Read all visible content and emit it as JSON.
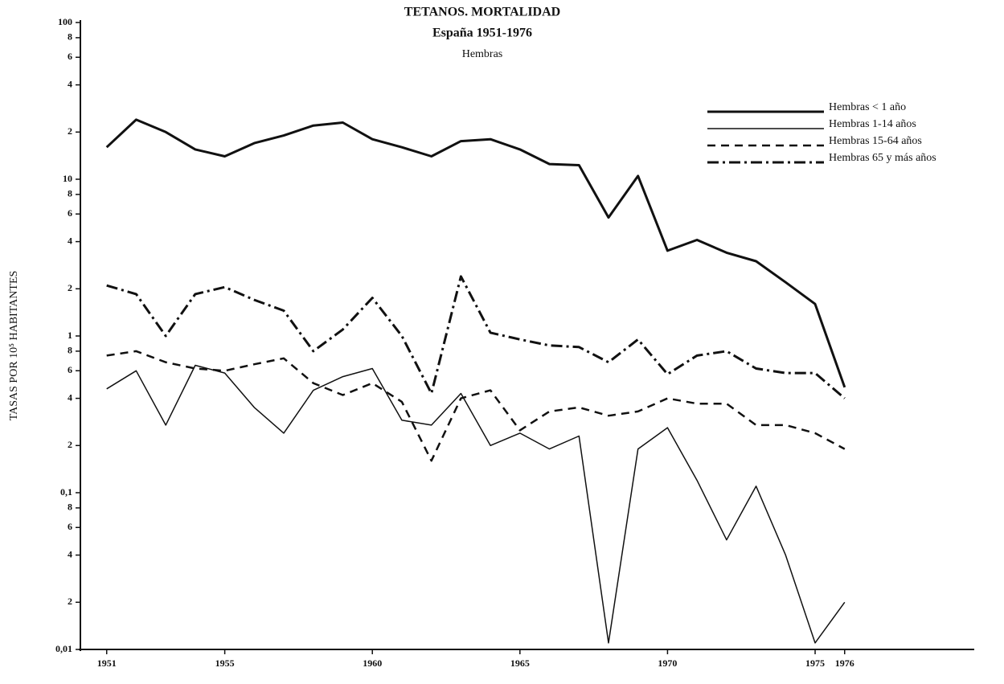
{
  "chart_data": {
    "type": "line",
    "title": "TETANOS. MORTALIDAD",
    "subtitle": "España 1951-1976",
    "subtitle2": "Hembras",
    "ylabel": "TASAS POR 10⁵ HABITANTES",
    "log_y": true,
    "grid": false,
    "legend": "upper right",
    "x": [
      1951,
      1952,
      1953,
      1954,
      1955,
      1956,
      1957,
      1958,
      1959,
      1960,
      1961,
      1962,
      1963,
      1964,
      1965,
      1966,
      1967,
      1968,
      1969,
      1970,
      1971,
      1972,
      1973,
      1974,
      1975,
      1976
    ],
    "series": [
      {
        "name": "Hembras < 1 año",
        "color": "#111111",
        "linewidth": 3,
        "dash": "none",
        "values": [
          16,
          24,
          20,
          15.5,
          14,
          17,
          19,
          22,
          23,
          18,
          16,
          14,
          17.5,
          18,
          15.5,
          12.5,
          12.3,
          5.7,
          10.5,
          3.5,
          4.1,
          3.4,
          3.0,
          2.2,
          1.6,
          0.47
        ]
      },
      {
        "name": "Hembras 1-14 años",
        "color": "#111111",
        "linewidth": 1.5,
        "dash": "none",
        "values": [
          0.46,
          0.6,
          0.27,
          0.65,
          0.58,
          0.35,
          0.24,
          0.45,
          0.55,
          0.62,
          0.29,
          0.27,
          0.43,
          0.2,
          0.24,
          0.19,
          0.23,
          0.011,
          0.19,
          0.26,
          0.12,
          0.05,
          0.11,
          0.04,
          0.011,
          0.02
        ]
      },
      {
        "name": "Hembras 15-64 años",
        "color": "#111111",
        "linewidth": 2.5,
        "dash": "10 7",
        "values": [
          0.75,
          0.8,
          0.68,
          0.62,
          0.6,
          0.66,
          0.72,
          0.5,
          0.42,
          0.5,
          0.38,
          0.16,
          0.4,
          0.45,
          0.25,
          0.33,
          0.35,
          0.31,
          0.33,
          0.4,
          0.37,
          0.37,
          0.27,
          0.27,
          0.24,
          0.19
        ]
      },
      {
        "name": "Hembras 65 y más años",
        "color": "#111111",
        "linewidth": 3,
        "dash": "14 5 3 5",
        "values": [
          2.1,
          1.85,
          1.0,
          1.85,
          2.05,
          1.7,
          1.45,
          0.8,
          1.1,
          1.75,
          1.0,
          0.43,
          2.4,
          1.05,
          0.95,
          0.87,
          0.85,
          0.68,
          0.95,
          0.57,
          0.75,
          0.8,
          0.62,
          0.58,
          0.58,
          0.4
        ]
      }
    ],
    "xlim": [
      1950,
      1980.5
    ],
    "xticks": [
      1951,
      1955,
      1960,
      1965,
      1970,
      1975,
      1976
    ],
    "ylim": [
      0.01,
      100
    ],
    "yticks": [
      100,
      {
        "value": 80,
        "label": "8"
      },
      {
        "value": 60,
        "label": "6"
      },
      {
        "value": 40,
        "label": "4"
      },
      {
        "value": 20,
        "label": "2"
      },
      10,
      {
        "value": 8,
        "label": "8"
      },
      {
        "value": 6,
        "label": "6"
      },
      {
        "value": 4,
        "label": "4"
      },
      {
        "value": 2,
        "label": "2"
      },
      1,
      {
        "value": 0.8,
        "label": "8"
      },
      {
        "value": 0.6,
        "label": "6"
      },
      {
        "value": 0.4,
        "label": "4"
      },
      {
        "value": 0.2,
        "label": "2"
      },
      {
        "value": 0.1,
        "label": "0,1"
      },
      {
        "value": 0.08,
        "label": "8"
      },
      {
        "value": 0.06,
        "label": "6"
      },
      {
        "value": 0.04,
        "label": "4"
      },
      {
        "value": 0.02,
        "label": "2"
      },
      {
        "value": 0.01,
        "label": "0,01"
      }
    ]
  }
}
